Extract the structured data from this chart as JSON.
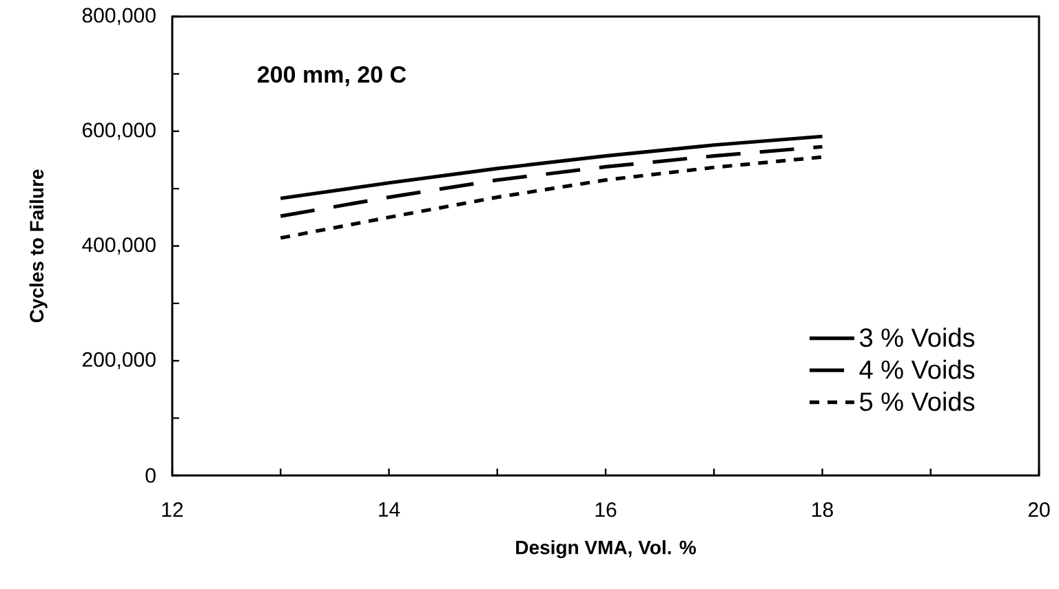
{
  "chart_data": {
    "type": "line",
    "xlabel": "Design VMA, Vol. %",
    "ylabel": "Cycles to Failure",
    "annotations": [
      "200 mm, 20 C"
    ],
    "x": [
      13,
      14,
      15,
      16,
      17,
      18
    ],
    "series": [
      {
        "name": "3 % Voids",
        "color": "#000000",
        "line_style": "solid",
        "values": [
          483000,
          510000,
          535000,
          557000,
          576000,
          591000
        ]
      },
      {
        "name": "4 % Voids",
        "color": "#000000",
        "line_style": "dashed",
        "values": [
          452000,
          485000,
          515000,
          538000,
          557000,
          573000
        ]
      },
      {
        "name": "5 % Voids",
        "color": "#000000",
        "line_style": "dotted",
        "values": [
          414000,
          450000,
          485000,
          515000,
          537000,
          555000
        ]
      }
    ],
    "xlim": [
      12,
      20
    ],
    "ylim": [
      0,
      800000
    ],
    "xticks": [
      12,
      {
        "value": 13,
        "label": null
      },
      14,
      {
        "value": 15,
        "label": null
      },
      16,
      {
        "value": 17,
        "label": null
      },
      18,
      {
        "value": 19,
        "label": null
      },
      20
    ],
    "yticks": [
      0,
      {
        "value": 100000,
        "label": null
      },
      {
        "value": 200000,
        "label": "200,000"
      },
      {
        "value": 300000,
        "label": null
      },
      {
        "value": 400000,
        "label": "400,000"
      },
      {
        "value": 500000,
        "label": null
      },
      {
        "value": 600000,
        "label": "600,000"
      },
      {
        "value": 700000,
        "label": null
      },
      {
        "value": 800000,
        "label": "800,000"
      }
    ],
    "grid": false,
    "legend": "bottom right",
    "marker": "none"
  }
}
